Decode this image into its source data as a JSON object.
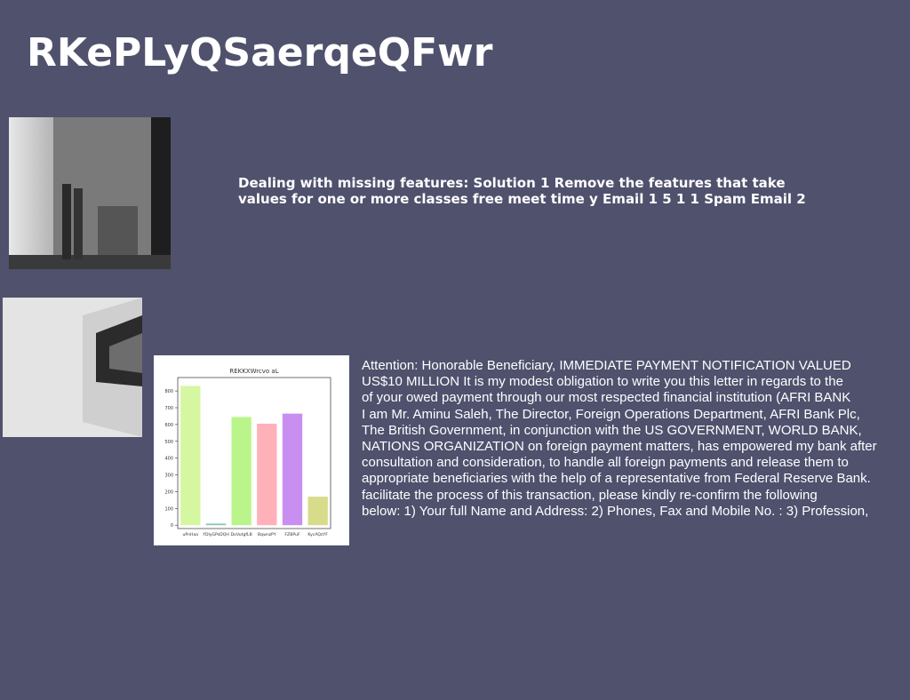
{
  "header": {
    "title": "RKePLyQSaerqeQFwr"
  },
  "section1": {
    "text": [
      "Dealing with missing features: Solution 1 Remove the features that take",
      "values for one or more classes free meet time y Email 1 5 1 1 Spam Email 2"
    ]
  },
  "section2": {
    "lines": [
      "Attention: Honorable Beneficiary, IMMEDIATE PAYMENT NOTIFICATION VALUED",
      "US$10 MILLION It is my modest obligation to write you this letter in regards to the",
      "of your owed payment through our most respected financial institution (AFRI BANK",
      "I am Mr. Aminu Saleh, The Director, Foreign Operations Department, AFRI Bank Plc,",
      "The British Government, in conjunction with the US GOVERNMENT, WORLD BANK,",
      "NATIONS ORGANIZATION on foreign payment matters, has empowered my bank after",
      "consultation and consideration, to handle all foreign payments and release them to",
      "appropriate beneficiaries with the help of a representative from Federal Reserve Bank.",
      "facilitate the process of this transaction, please kindly re-confirm the following",
      "below: 1) Your full Name and Address: 2) Phones, Fax and Mobile No. : 3) Profession,"
    ]
  },
  "chart_data": {
    "type": "bar",
    "title": "REKKXWrcvo aL",
    "categories": [
      "uPnHaa",
      "YDlyGPsDQH",
      "DoVutgfLB",
      "BqwnzPY",
      "FZBPuF",
      "KycAQzYF"
    ],
    "values": [
      830,
      10,
      645,
      605,
      665,
      170
    ],
    "colors": [
      "#d6f7a2",
      "#8cc9bd",
      "#baf58c",
      "#ffb1b9",
      "#c98ff0",
      "#d7dc8b"
    ],
    "ylim": [
      -20,
      880
    ],
    "yticks": [
      0,
      100,
      200,
      300,
      400,
      500,
      600,
      700,
      800
    ]
  }
}
